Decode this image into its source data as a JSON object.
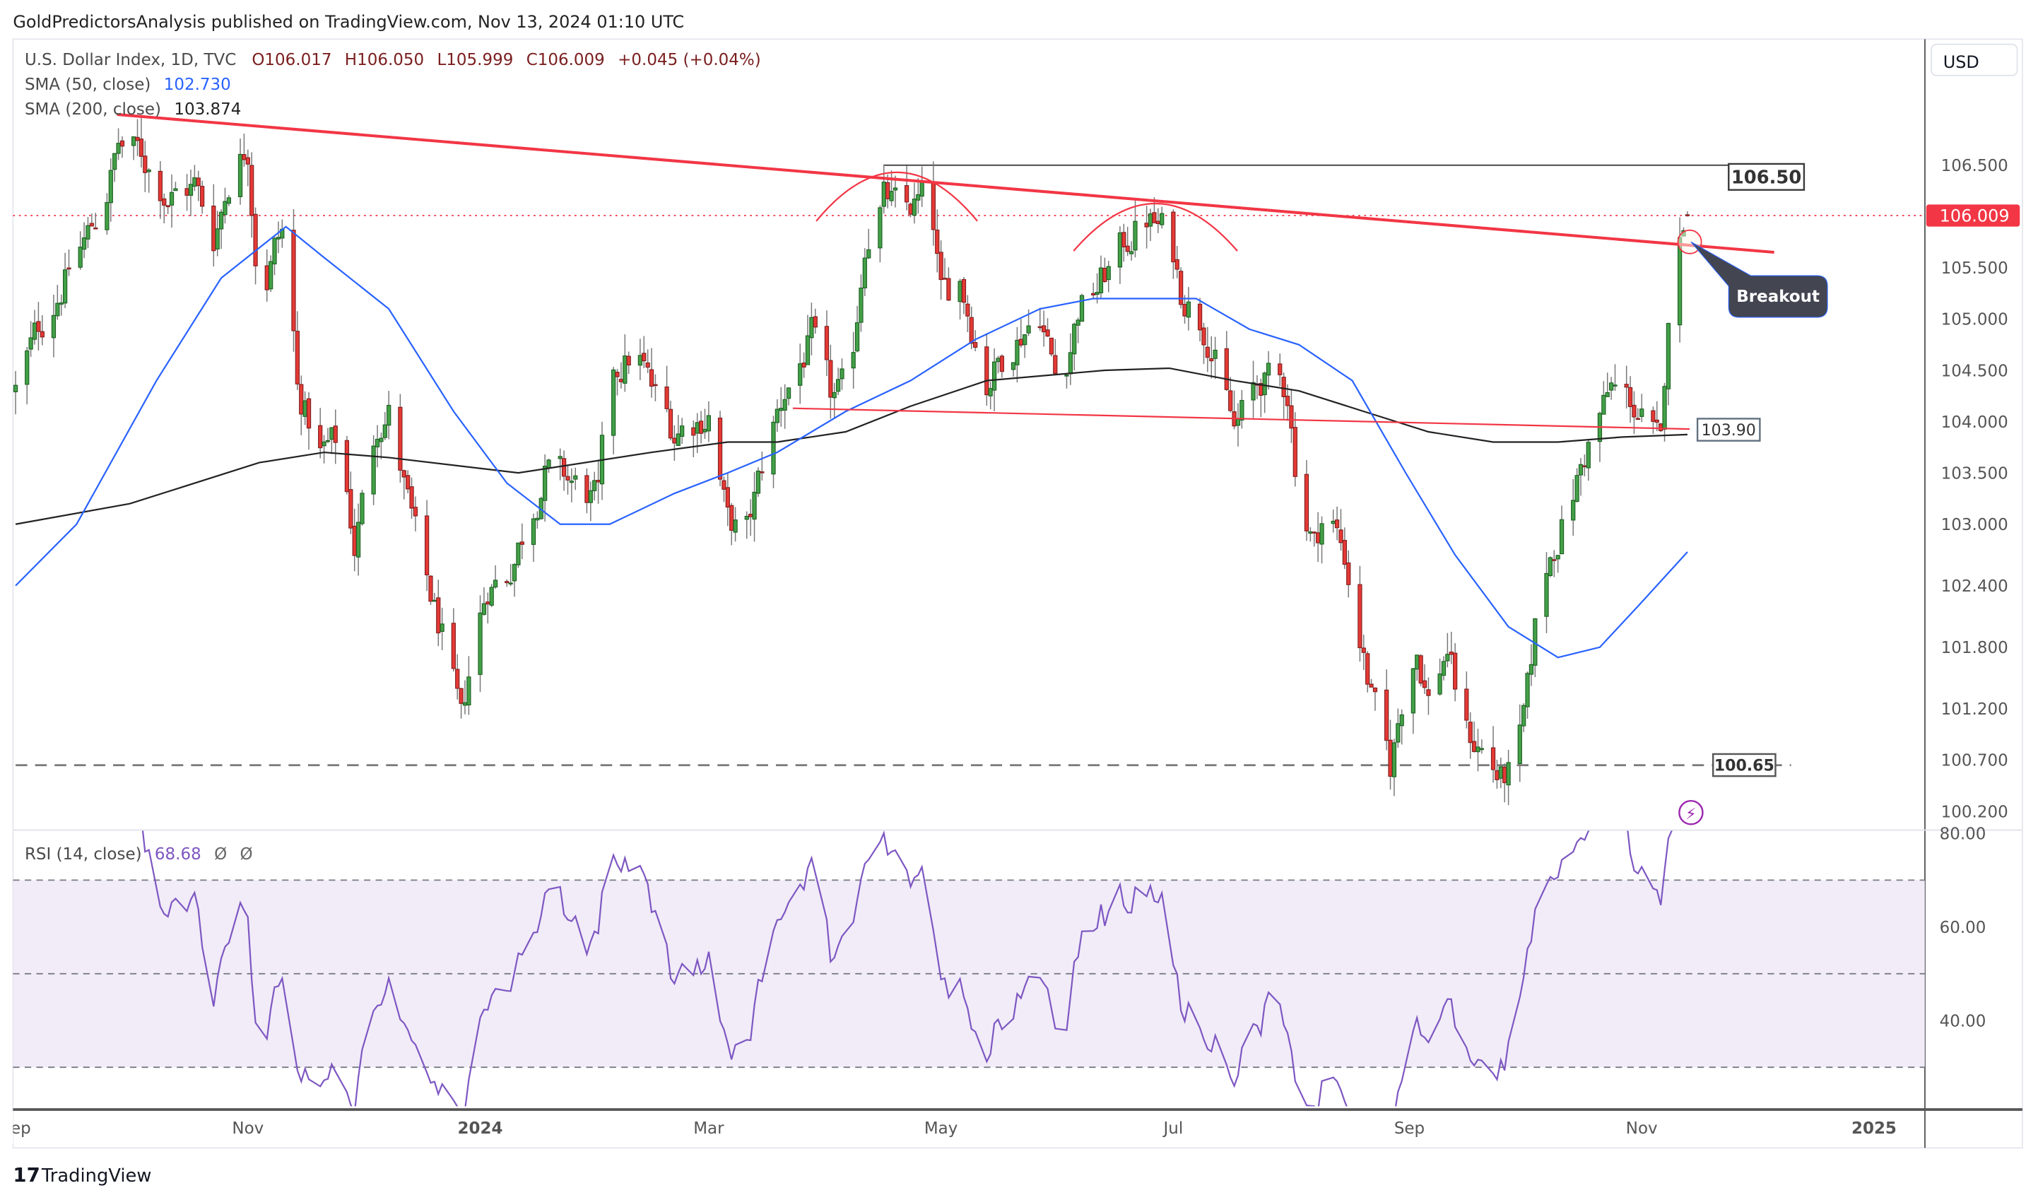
{
  "header": {
    "published": "GoldPredictorsAnalysis published on TradingView.com, Nov 13, 2024 01:10 UTC"
  },
  "legend": {
    "symbol": "U.S. Dollar Index, 1D, TVC",
    "open": "O106.017",
    "high": "H106.050",
    "low": "L105.999",
    "close": "C106.009",
    "change": "+0.045 (+0.04%)",
    "sma50_label": "SMA (50, close)",
    "sma50_value": "102.730",
    "sma200_label": "SMA (200, close)",
    "sma200_value": "103.874",
    "rsi_label": "RSI (14, close)",
    "rsi_value": "68.68",
    "rsi_extra1": "Ø",
    "rsi_extra2": "Ø"
  },
  "currency": "USD",
  "price_label": "106.009",
  "annotations": {
    "resistance": "106.50",
    "support_line": "103.90",
    "support": "100.65",
    "breakout": "Breakout"
  },
  "footer": "TradingView",
  "colors": {
    "up": "#43a047",
    "down": "#e53935",
    "sma50": "#2962ff",
    "sma200": "#222222",
    "rsi": "#7e57c2",
    "trendline": "#f23645",
    "price_label": "#f23645"
  },
  "chart_data": {
    "type": "candlestick",
    "title": "U.S. Dollar Index, 1D, TVC",
    "x_unit": "days since 2023-09-01",
    "price_ticks": [
      "106.500",
      "105.500",
      "105.000",
      "104.500",
      "104.000",
      "103.500",
      "103.000",
      "102.400",
      "101.800",
      "101.200",
      "100.700",
      "100.200"
    ],
    "rsi_ticks": [
      "80.00",
      "60.00",
      "40.00"
    ],
    "rsi_levels": [
      70,
      50,
      30
    ],
    "time_ticks": [
      {
        "label": "Sep",
        "day": 0
      },
      {
        "label": "Nov",
        "day": 61
      },
      {
        "label": "2024",
        "day": 122
      },
      {
        "label": "Mar",
        "day": 182
      },
      {
        "label": "May",
        "day": 243
      },
      {
        "label": "Jul",
        "day": 304
      },
      {
        "label": "Sep",
        "day": 366
      },
      {
        "label": "Nov",
        "day": 427
      },
      {
        "label": "2025",
        "day": 488
      }
    ],
    "approx_close": [
      [
        0,
        104.3
      ],
      [
        6,
        104.9
      ],
      [
        13,
        105.4
      ],
      [
        23,
        106.1
      ],
      [
        27,
        106.7
      ],
      [
        33,
        106.6
      ],
      [
        40,
        106.2
      ],
      [
        47,
        106.3
      ],
      [
        52,
        105.8
      ],
      [
        57,
        106.5
      ],
      [
        61,
        106.7
      ],
      [
        64,
        105.2
      ],
      [
        68,
        105.7
      ],
      [
        71,
        105.9
      ],
      [
        74,
        104.3
      ],
      [
        80,
        103.7
      ],
      [
        85,
        103.8
      ],
      [
        89,
        102.8
      ],
      [
        95,
        104.0
      ],
      [
        98,
        104.1
      ],
      [
        103,
        103.2
      ],
      [
        107,
        102.5
      ],
      [
        112,
        101.9
      ],
      [
        117,
        101.0
      ],
      [
        120,
        101.8
      ],
      [
        124,
        102.4
      ],
      [
        129,
        102.5
      ],
      [
        134,
        103.0
      ],
      [
        139,
        103.5
      ],
      [
        146,
        103.4
      ],
      [
        153,
        103.2
      ],
      [
        156,
        104.4
      ],
      [
        163,
        104.7
      ],
      [
        167,
        104.3
      ],
      [
        173,
        103.9
      ],
      [
        182,
        104.1
      ],
      [
        187,
        103.0
      ],
      [
        192,
        102.9
      ],
      [
        197,
        103.7
      ],
      [
        202,
        104.3
      ],
      [
        209,
        104.8
      ],
      [
        214,
        104.2
      ],
      [
        219,
        104.3
      ],
      [
        223,
        105.8
      ],
      [
        228,
        106.2
      ],
      [
        233,
        106.0
      ],
      [
        240,
        106.2
      ],
      [
        243,
        105.2
      ],
      [
        248,
        105.4
      ],
      [
        255,
        104.4
      ],
      [
        262,
        104.8
      ],
      [
        269,
        105.1
      ],
      [
        274,
        104.3
      ],
      [
        279,
        105.1
      ],
      [
        284,
        105.3
      ],
      [
        289,
        105.6
      ],
      [
        296,
        106.0
      ],
      [
        303,
        105.8
      ],
      [
        306,
        105.3
      ],
      [
        313,
        104.9
      ],
      [
        320,
        103.9
      ],
      [
        327,
        104.4
      ],
      [
        334,
        104.3
      ],
      [
        337,
        103.3
      ],
      [
        341,
        102.8
      ],
      [
        344,
        103.2
      ],
      [
        349,
        102.7
      ],
      [
        353,
        101.9
      ],
      [
        356,
        101.3
      ],
      [
        361,
        100.6
      ],
      [
        365,
        101.5
      ],
      [
        368,
        101.8
      ],
      [
        371,
        101.3
      ],
      [
        376,
        101.8
      ],
      [
        380,
        101.0
      ],
      [
        385,
        100.8
      ],
      [
        390,
        100.5
      ],
      [
        394,
        100.6
      ],
      [
        397,
        101.3
      ],
      [
        400,
        102.3
      ],
      [
        404,
        102.8
      ],
      [
        409,
        103.3
      ],
      [
        414,
        103.9
      ],
      [
        419,
        104.3
      ],
      [
        424,
        104.2
      ],
      [
        429,
        103.9
      ],
      [
        432,
        103.7
      ],
      [
        434,
        105.1
      ],
      [
        436,
        105.5
      ],
      [
        438,
        106.0
      ]
    ],
    "last_bar": {
      "day": 439,
      "open": 106.017,
      "high": 106.05,
      "low": 105.999,
      "close": 106.009
    },
    "sma50": [
      [
        0,
        102.4
      ],
      [
        16,
        103.0
      ],
      [
        37,
        104.4
      ],
      [
        54,
        105.4
      ],
      [
        71,
        105.9
      ],
      [
        81,
        105.6
      ],
      [
        98,
        105.1
      ],
      [
        115,
        104.1
      ],
      [
        129,
        103.4
      ],
      [
        143,
        103.0
      ],
      [
        156,
        103.0
      ],
      [
        173,
        103.3
      ],
      [
        187,
        103.5
      ],
      [
        200,
        103.7
      ],
      [
        218,
        104.1
      ],
      [
        235,
        104.4
      ],
      [
        252,
        104.8
      ],
      [
        269,
        105.1
      ],
      [
        283,
        105.2
      ],
      [
        296,
        105.2
      ],
      [
        310,
        105.2
      ],
      [
        324,
        104.9
      ],
      [
        337,
        104.75
      ],
      [
        351,
        104.4
      ],
      [
        365,
        103.5
      ],
      [
        378,
        102.7
      ],
      [
        392,
        102.0
      ],
      [
        405,
        101.7
      ],
      [
        416,
        101.8
      ],
      [
        426,
        102.2
      ],
      [
        439,
        102.73
      ]
    ],
    "sma200": [
      [
        0,
        103.0
      ],
      [
        30,
        103.2
      ],
      [
        64,
        103.6
      ],
      [
        81,
        103.7
      ],
      [
        98,
        103.65
      ],
      [
        132,
        103.5
      ],
      [
        167,
        103.7
      ],
      [
        187,
        103.8
      ],
      [
        200,
        103.8
      ],
      [
        218,
        103.9
      ],
      [
        235,
        104.15
      ],
      [
        255,
        104.4
      ],
      [
        286,
        104.5
      ],
      [
        303,
        104.52
      ],
      [
        320,
        104.4
      ],
      [
        337,
        104.3
      ],
      [
        354,
        104.1
      ],
      [
        371,
        103.9
      ],
      [
        388,
        103.8
      ],
      [
        405,
        103.8
      ],
      [
        422,
        103.85
      ],
      [
        439,
        103.874
      ]
    ],
    "current_price": 106.009
  }
}
